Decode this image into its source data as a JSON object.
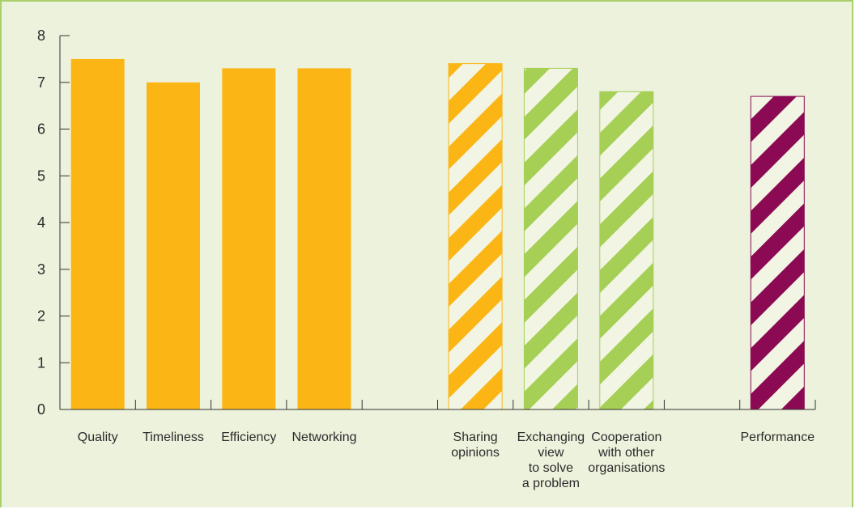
{
  "chart_data": {
    "type": "bar",
    "title": "",
    "xlabel": "",
    "ylabel": "",
    "ylim": [
      0,
      8
    ],
    "y_ticks": [
      "0",
      "1",
      "2",
      "3",
      "4",
      "5",
      "6",
      "7",
      "8"
    ],
    "grid": false,
    "legend": "none",
    "categories": [
      {
        "label": [
          "Quality"
        ],
        "value": 7.5,
        "slot": 0,
        "fill": "solid",
        "color": "#fbb616"
      },
      {
        "label": [
          "Timeliness"
        ],
        "value": 7.0,
        "slot": 1,
        "fill": "solid",
        "color": "#fbb616"
      },
      {
        "label": [
          "Efficiency"
        ],
        "value": 7.3,
        "slot": 2,
        "fill": "solid",
        "color": "#fbb616"
      },
      {
        "label": [
          "Networking"
        ],
        "value": 7.3,
        "slot": 3,
        "fill": "solid",
        "color": "#fbb616"
      },
      {
        "label": [
          "Sharing",
          "opinions"
        ],
        "value": 7.4,
        "slot": 5,
        "fill": "striped",
        "color": "#fbb616"
      },
      {
        "label": [
          "Exchanging",
          "view",
          "to solve",
          "a problem"
        ],
        "value": 7.3,
        "slot": 6,
        "fill": "striped",
        "color": "#a5cf55"
      },
      {
        "label": [
          "Cooperation",
          "with other",
          "organisations"
        ],
        "value": 6.8,
        "slot": 7,
        "fill": "striped",
        "color": "#a5cf55"
      },
      {
        "label": [
          "Performance"
        ],
        "value": 6.7,
        "slot": 9,
        "fill": "striped",
        "color": "#8b0a53"
      }
    ]
  }
}
